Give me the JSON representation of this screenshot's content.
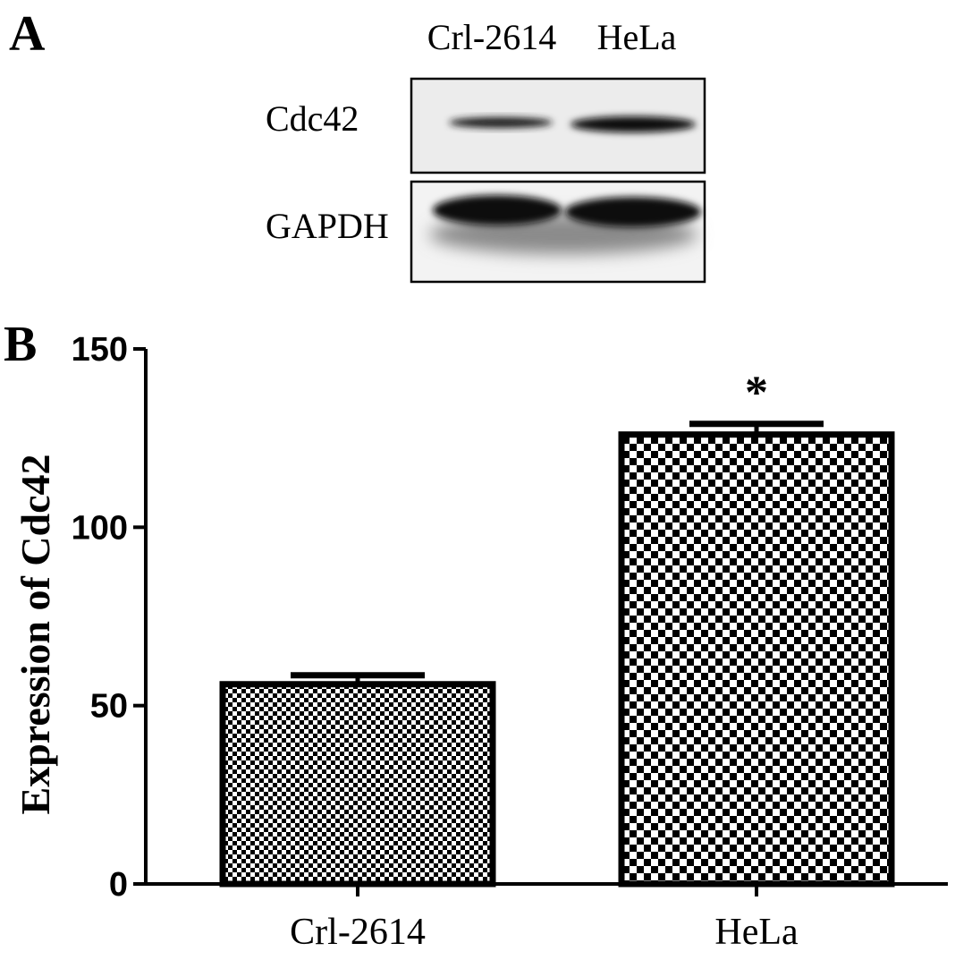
{
  "panel_a": {
    "label": "A",
    "lane_labels": [
      "Crl-2614",
      "HeLa"
    ],
    "row_labels": [
      "Cdc42",
      "GAPDH"
    ]
  },
  "chart_data": {
    "type": "bar",
    "panel_label": "B",
    "title": "",
    "xlabel": "",
    "ylabel": "Expression of Cdc42",
    "categories": [
      "Crl-2614",
      "HeLa"
    ],
    "values": [
      56,
      126
    ],
    "errors": [
      2.5,
      3
    ],
    "ylim": [
      0,
      150
    ],
    "yticks": [
      0,
      50,
      100,
      150
    ],
    "grid": false,
    "annotations": [
      {
        "category": "HeLa",
        "text": "*"
      }
    ],
    "fill_patterns": [
      "fine-checker",
      "coarse-checker"
    ],
    "colors": {
      "bar_fill_dark": "#000000",
      "bar_fill_light": "#ffffff"
    }
  }
}
